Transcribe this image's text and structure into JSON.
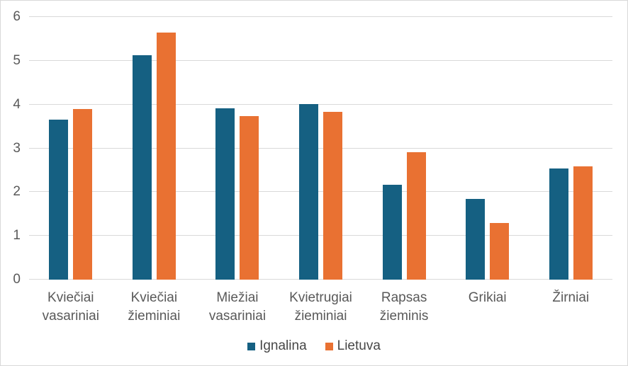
{
  "chart_data": {
    "type": "bar",
    "title": "",
    "xlabel": "",
    "ylabel": "",
    "categories": [
      "Kviečiai vasariniai",
      "Kviečiai žieminiai",
      "Miežiai vasariniai",
      "Kvietrugiai žieminiai",
      "Rapsas žieminis",
      "Grikiai",
      "Žirniai"
    ],
    "series": [
      {
        "name": "Ignalina",
        "color": "#156082",
        "values": [
          3.65,
          5.12,
          3.91,
          4.01,
          2.16,
          1.85,
          2.54
        ]
      },
      {
        "name": "Lietuva",
        "color": "#E97132",
        "values": [
          3.9,
          5.65,
          3.74,
          3.83,
          2.91,
          1.29,
          2.59
        ]
      }
    ],
    "ylim": [
      0,
      6
    ],
    "yticks": [
      0,
      1,
      2,
      3,
      4,
      5,
      6
    ],
    "grid": true,
    "legend_position": "bottom"
  },
  "colors": {
    "gridline": "#D9D9D9",
    "axis_text": "#595959",
    "legend_text": "#474747",
    "border": "#D9D9D9",
    "background": "#FFFFFF"
  }
}
